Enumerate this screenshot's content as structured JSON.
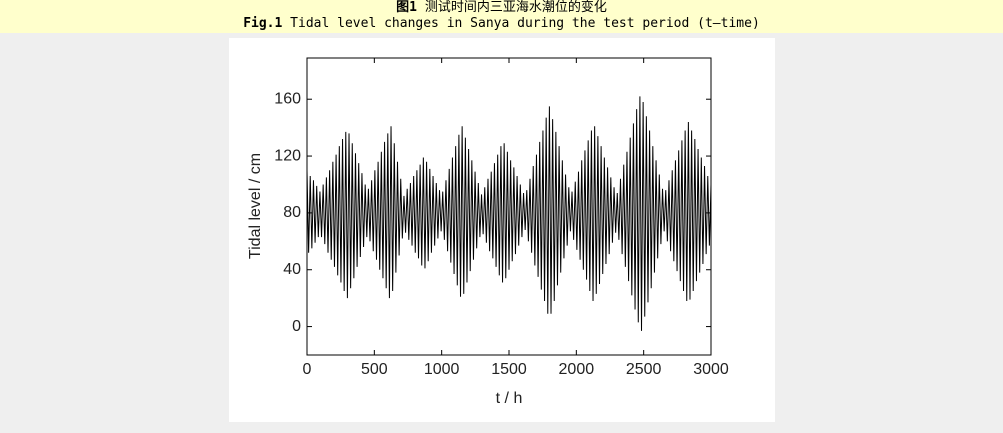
{
  "caption": {
    "label_cn": "图1",
    "title_cn": "测试时间内三亚海水潮位的变化",
    "label_en": "Fig.1",
    "title_en": "Tidal level changes in Sanya during the test period (t—time)"
  },
  "chart_data": {
    "type": "line",
    "color": "#000000",
    "xlabel": "t / h",
    "ylabel": "Tidal level / cm",
    "xlim": [
      0,
      3000
    ],
    "ylim": [
      -20,
      189
    ],
    "xticks": [
      0,
      500,
      1000,
      1500,
      2000,
      2500,
      3000
    ],
    "yticks": [
      0,
      40,
      80,
      120,
      160
    ],
    "x": [
      0,
      12,
      24,
      36,
      48,
      60,
      72,
      84,
      96,
      108,
      120,
      132,
      144,
      156,
      168,
      180,
      192,
      204,
      216,
      228,
      240,
      252,
      264,
      276,
      288,
      300,
      312,
      324,
      336,
      348,
      360,
      372,
      384,
      396,
      408,
      420,
      432,
      444,
      456,
      468,
      480,
      492,
      504,
      516,
      528,
      540,
      552,
      564,
      576,
      588,
      600,
      612,
      624,
      636,
      648,
      660,
      672,
      684,
      696,
      708,
      720,
      732,
      744,
      756,
      768,
      780,
      792,
      804,
      816,
      828,
      840,
      852,
      864,
      876,
      888,
      900,
      912,
      924,
      936,
      948,
      960,
      972,
      984,
      996,
      1008,
      1020,
      1032,
      1044,
      1056,
      1068,
      1080,
      1092,
      1104,
      1116,
      1128,
      1140,
      1152,
      1164,
      1176,
      1188,
      1200,
      1212,
      1224,
      1236,
      1248,
      1260,
      1272,
      1284,
      1296,
      1308,
      1320,
      1332,
      1344,
      1356,
      1368,
      1380,
      1392,
      1404,
      1416,
      1428,
      1440,
      1452,
      1464,
      1476,
      1488,
      1500,
      1512,
      1524,
      1536,
      1548,
      1560,
      1572,
      1584,
      1596,
      1608,
      1620,
      1632,
      1644,
      1656,
      1668,
      1680,
      1692,
      1704,
      1716,
      1728,
      1740,
      1752,
      1764,
      1776,
      1788,
      1800,
      1812,
      1824,
      1836,
      1848,
      1860,
      1872,
      1884,
      1896,
      1908,
      1920,
      1932,
      1944,
      1956,
      1968,
      1980,
      1992,
      2004,
      2016,
      2028,
      2040,
      2052,
      2064,
      2076,
      2088,
      2100,
      2112,
      2124,
      2136,
      2148,
      2160,
      2172,
      2184,
      2196,
      2208,
      2220,
      2232,
      2244,
      2256,
      2268,
      2280,
      2292,
      2304,
      2316,
      2328,
      2340,
      2352,
      2364,
      2376,
      2388,
      2400,
      2412,
      2424,
      2436,
      2448,
      2460,
      2472,
      2484,
      2496,
      2508,
      2520,
      2532,
      2544,
      2556,
      2568,
      2580,
      2592,
      2604,
      2616,
      2628,
      2640,
      2652,
      2664,
      2676,
      2688,
      2700,
      2712,
      2724,
      2736,
      2748,
      2760,
      2772,
      2784,
      2796,
      2808,
      2820,
      2832,
      2844,
      2856,
      2868,
      2880,
      2892,
      2904,
      2916,
      2928,
      2940,
      2952,
      2964,
      2976,
      2988,
      3000
    ],
    "values": [
      110,
      52,
      106,
      55,
      103,
      59,
      99,
      63,
      95,
      63,
      100,
      58,
      105,
      52,
      110,
      47,
      116,
      42,
      121,
      36,
      127,
      31,
      132,
      25,
      137,
      20,
      136,
      27,
      129,
      34,
      122,
      42,
      115,
      49,
      108,
      56,
      100,
      63,
      97,
      60,
      103,
      53,
      110,
      47,
      116,
      40,
      123,
      34,
      130,
      27,
      136,
      20,
      141,
      25,
      129,
      38,
      116,
      50,
      104,
      62,
      92,
      66,
      97,
      61,
      101,
      57,
      106,
      52,
      110,
      48,
      114,
      43,
      119,
      41,
      116,
      46,
      111,
      52,
      106,
      57,
      101,
      62,
      96,
      67,
      95,
      61,
      103,
      53,
      111,
      45,
      119,
      37,
      127,
      29,
      135,
      21,
      141,
      23,
      133,
      31,
      125,
      39,
      117,
      47,
      109,
      55,
      101,
      63,
      93,
      65,
      98,
      59,
      104,
      53,
      109,
      48,
      115,
      42,
      121,
      36,
      127,
      31,
      129,
      34,
      123,
      40,
      117,
      46,
      112,
      51,
      106,
      57,
      100,
      63,
      94,
      68,
      96,
      60,
      104,
      52,
      113,
      43,
      121,
      35,
      130,
      26,
      138,
      18,
      147,
      9,
      155,
      9,
      146,
      18,
      137,
      29,
      127,
      38,
      117,
      48,
      107,
      57,
      98,
      67,
      95,
      61,
      102,
      54,
      109,
      47,
      117,
      40,
      124,
      33,
      131,
      25,
      138,
      18,
      141,
      23,
      134,
      30,
      127,
      37,
      119,
      44,
      112,
      51,
      105,
      59,
      98,
      66,
      94,
      61,
      104,
      51,
      114,
      42,
      123,
      32,
      133,
      22,
      143,
      12,
      153,
      3,
      162,
      -3,
      158,
      7,
      148,
      17,
      138,
      27,
      127,
      38,
      117,
      48,
      107,
      58,
      97,
      67,
      96,
      60,
      103,
      53,
      110,
      46,
      117,
      39,
      124,
      32,
      131,
      25,
      138,
      18,
      144,
      19,
      138,
      25,
      132,
      32,
      125,
      38,
      119,
      44,
      113,
      51,
      106,
      57,
      100
    ]
  }
}
